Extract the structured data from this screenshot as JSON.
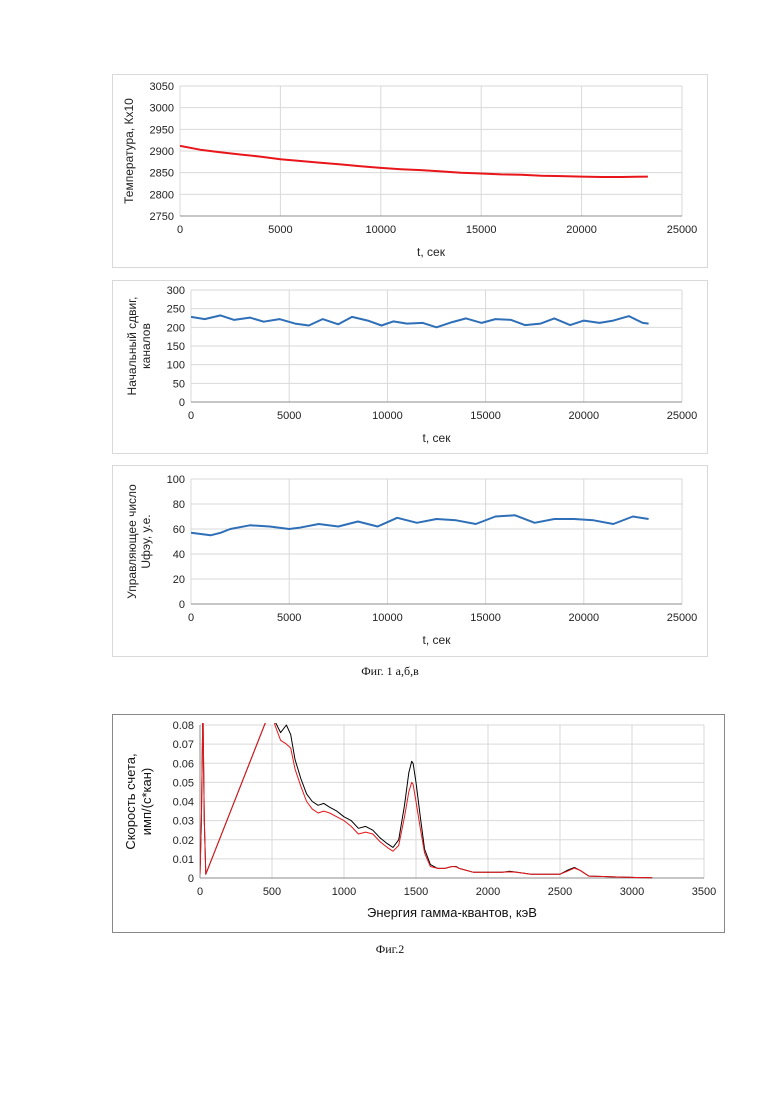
{
  "captions": {
    "fig1": "Фиг. 1  а,б,в",
    "fig2": "Фиг.2"
  },
  "chart_data": [
    {
      "type": "line",
      "xlabel": "t,  сек",
      "ylabel": "Температура, Кх10",
      "xlim": [
        0,
        25000
      ],
      "ylim": [
        2750,
        3050
      ],
      "xticks": [
        0,
        5000,
        10000,
        15000,
        20000,
        25000
      ],
      "yticks": [
        2750,
        2800,
        2850,
        2900,
        2950,
        3000,
        3050
      ],
      "grid": true,
      "series": [
        {
          "color": "#e8161a",
          "x": [
            0,
            1000,
            2000,
            3000,
            4000,
            5000,
            6000,
            7000,
            8000,
            9000,
            10000,
            11000,
            12000,
            13000,
            14000,
            15000,
            16000,
            17000,
            18000,
            19000,
            20000,
            21000,
            22000,
            23300
          ],
          "values": [
            2912,
            2903,
            2897,
            2892,
            2887,
            2881,
            2877,
            2873,
            2869,
            2865,
            2861,
            2858,
            2856,
            2853,
            2850,
            2848,
            2846,
            2845,
            2843,
            2842,
            2841,
            2840,
            2840,
            2841
          ]
        }
      ]
    },
    {
      "type": "line",
      "xlabel": "t,  сек",
      "ylabel": "Начальный сдвиг, каналов",
      "ylabel_lines": [
        "Начальный сдвиг,",
        "каналов"
      ],
      "xlim": [
        0,
        25000
      ],
      "ylim": [
        0,
        300
      ],
      "xticks": [
        0,
        5000,
        10000,
        15000,
        20000,
        25000
      ],
      "yticks": [
        0,
        50,
        100,
        150,
        200,
        250,
        300
      ],
      "grid": true,
      "series": [
        {
          "color": "#2e6fb8",
          "x": [
            0,
            700,
            1500,
            2200,
            3000,
            3700,
            4500,
            5300,
            6000,
            6700,
            7500,
            8200,
            9000,
            9700,
            10300,
            11000,
            11800,
            12500,
            13300,
            14000,
            14800,
            15500,
            16300,
            17000,
            17800,
            18500,
            19300,
            20000,
            20800,
            21500,
            22300,
            23000,
            23300
          ],
          "values": [
            228,
            222,
            232,
            220,
            226,
            215,
            222,
            210,
            205,
            222,
            208,
            228,
            218,
            205,
            216,
            210,
            212,
            200,
            214,
            224,
            212,
            222,
            220,
            206,
            210,
            224,
            206,
            218,
            212,
            218,
            230,
            212,
            210
          ]
        }
      ]
    },
    {
      "type": "line",
      "xlabel": "t, сек",
      "ylabel": "Управляющее число Uфэу,  у.е.",
      "ylabel_lines": [
        "Управляющее число",
        "Uфэу,  у.е."
      ],
      "xlim": [
        0,
        25000
      ],
      "ylim": [
        0,
        100
      ],
      "xticks": [
        0,
        5000,
        10000,
        15000,
        20000,
        25000
      ],
      "yticks": [
        0,
        20,
        40,
        60,
        80,
        100
      ],
      "grid": true,
      "series": [
        {
          "color": "#2e6fb8",
          "x": [
            0,
            500,
            1000,
            1500,
            2000,
            3000,
            4000,
            5000,
            5500,
            6500,
            7500,
            8500,
            9500,
            10500,
            11500,
            12500,
            13500,
            14500,
            15500,
            16500,
            17500,
            18500,
            19500,
            20500,
            21500,
            22500,
            23300
          ],
          "values": [
            57,
            56,
            55,
            57,
            60,
            63,
            62,
            60,
            61,
            64,
            62,
            66,
            62,
            69,
            65,
            68,
            67,
            64,
            70,
            71,
            65,
            68,
            68,
            67,
            64,
            70,
            68
          ]
        }
      ]
    },
    {
      "type": "line",
      "xlabel": "Энергия гамма-квантов, кэВ",
      "ylabel": "Скорость счета, имп/(с*кан)",
      "ylabel_lines": [
        "Скорость счета,",
        "имп/(с*кан)"
      ],
      "xlim": [
        0,
        3500
      ],
      "ylim": [
        0,
        0.08
      ],
      "xticks": [
        0,
        500,
        1000,
        1500,
        2000,
        2500,
        3000,
        3500
      ],
      "yticks": [
        0,
        0.01,
        0.02,
        0.03,
        0.04,
        0.05,
        0.06,
        0.07,
        0.08
      ],
      "ytick_labels": [
        "0",
        "0.01",
        "0.02",
        "0.03",
        "0.04",
        "0.05",
        "0.06",
        "0.07",
        "0.08"
      ],
      "grid": true,
      "series": [
        {
          "color": "#000000",
          "x": [
            0,
            10,
            20,
            30,
            40,
            500,
            520,
            560,
            600,
            630,
            660,
            700,
            740,
            780,
            820,
            860,
            900,
            950,
            1000,
            1050,
            1100,
            1150,
            1200,
            1250,
            1300,
            1340,
            1380,
            1420,
            1450,
            1470,
            1480,
            1500,
            1530,
            1560,
            1600,
            1650,
            1700,
            1750,
            1780,
            1800,
            1850,
            1900,
            2000,
            2100,
            2150,
            2200,
            2300,
            2400,
            2500,
            2550,
            2600,
            2640,
            2700,
            2800,
            2900,
            3000,
            3100,
            3140
          ],
          "values": [
            0.002,
            0.03,
            0.09,
            0.03,
            0.002,
            0.09,
            0.082,
            0.076,
            0.08,
            0.075,
            0.062,
            0.052,
            0.044,
            0.04,
            0.038,
            0.039,
            0.037,
            0.035,
            0.032,
            0.03,
            0.026,
            0.027,
            0.025,
            0.021,
            0.018,
            0.016,
            0.02,
            0.038,
            0.055,
            0.061,
            0.06,
            0.05,
            0.032,
            0.015,
            0.007,
            0.005,
            0.005,
            0.006,
            0.006,
            0.005,
            0.004,
            0.003,
            0.003,
            0.003,
            0.0035,
            0.003,
            0.002,
            0.002,
            0.002,
            0.004,
            0.0055,
            0.004,
            0.001,
            0.0008,
            0.0005,
            0.0003,
            0.0002,
            0.0001
          ]
        },
        {
          "color": "#e8161a",
          "x": [
            0,
            10,
            20,
            30,
            40,
            500,
            520,
            560,
            600,
            630,
            660,
            700,
            740,
            780,
            820,
            860,
            900,
            950,
            1000,
            1050,
            1100,
            1150,
            1200,
            1250,
            1300,
            1340,
            1380,
            1420,
            1450,
            1470,
            1480,
            1500,
            1530,
            1560,
            1600,
            1650,
            1700,
            1750,
            1780,
            1800,
            1850,
            1900,
            2000,
            2100,
            2150,
            2200,
            2300,
            2400,
            2500,
            2550,
            2600,
            2640,
            2700,
            2800,
            2900,
            3000,
            3100,
            3140
          ],
          "values": [
            0.002,
            0.03,
            0.09,
            0.03,
            0.002,
            0.09,
            0.08,
            0.072,
            0.07,
            0.068,
            0.057,
            0.048,
            0.04,
            0.036,
            0.034,
            0.035,
            0.034,
            0.032,
            0.03,
            0.027,
            0.023,
            0.024,
            0.023,
            0.019,
            0.016,
            0.014,
            0.017,
            0.032,
            0.045,
            0.05,
            0.049,
            0.04,
            0.026,
            0.013,
            0.006,
            0.005,
            0.005,
            0.006,
            0.0058,
            0.005,
            0.004,
            0.003,
            0.003,
            0.003,
            0.0032,
            0.003,
            0.002,
            0.002,
            0.002,
            0.0035,
            0.0052,
            0.004,
            0.001,
            0.0008,
            0.0005,
            0.0003,
            0.0002,
            0.0001
          ]
        }
      ]
    }
  ]
}
